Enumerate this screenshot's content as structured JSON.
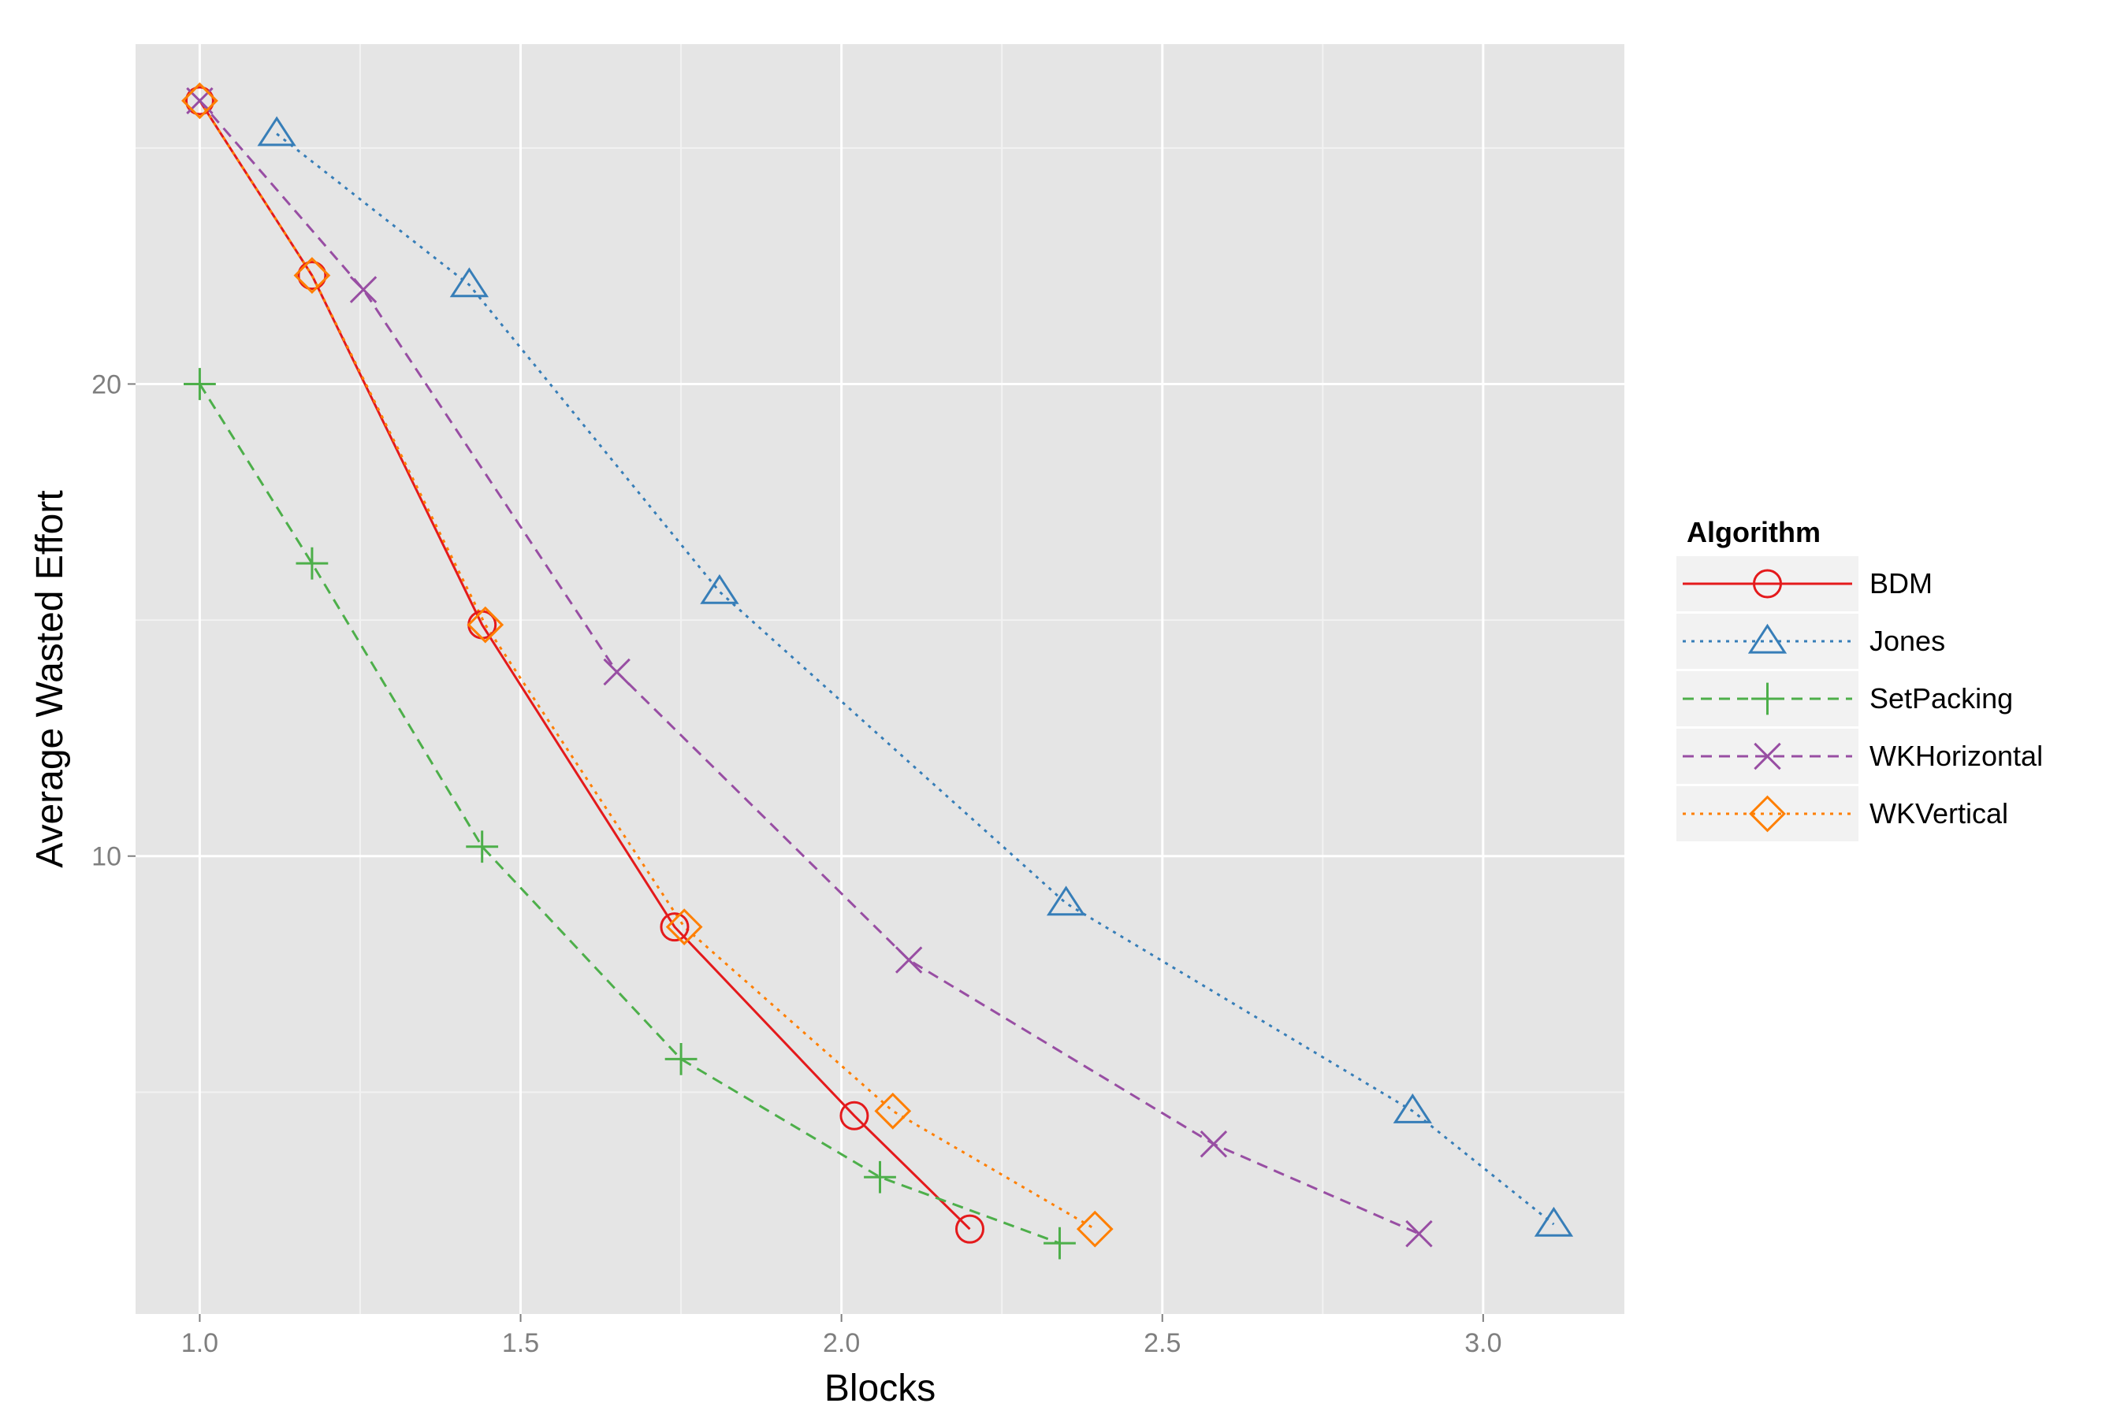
{
  "chart_data": {
    "type": "line",
    "xlabel": "Blocks",
    "ylabel": "Average Wasted Effort",
    "xlim": [
      0.9,
      3.22
    ],
    "ylim": [
      0.3,
      27.2
    ],
    "x_ticks": [
      1.0,
      1.5,
      2.0,
      2.5,
      3.0
    ],
    "x_tick_labels": [
      "1.0",
      "1.5",
      "2.0",
      "2.5",
      "3.0"
    ],
    "y_ticks": [
      10,
      20
    ],
    "y_tick_labels": [
      "10",
      "20"
    ],
    "grid": true,
    "legend": {
      "title": "Algorithm",
      "position": "right"
    },
    "series": [
      {
        "name": "BDM",
        "color": "#e41a1c",
        "linestyle": "solid",
        "marker": "circle",
        "x": [
          1.0,
          1.175,
          1.44,
          1.74,
          2.02,
          2.2
        ],
        "y": [
          26.0,
          22.3,
          14.9,
          8.5,
          4.5,
          2.1
        ]
      },
      {
        "name": "Jones",
        "color": "#377eb8",
        "linestyle": "dotted",
        "marker": "triangle",
        "x": [
          1.12,
          1.42,
          1.81,
          2.35,
          2.89,
          3.11
        ],
        "y": [
          25.3,
          22.1,
          15.6,
          9.0,
          4.6,
          2.2
        ]
      },
      {
        "name": "SetPacking",
        "color": "#4daf4a",
        "linestyle": "dashed",
        "marker": "plus",
        "x": [
          1.0,
          1.175,
          1.44,
          1.75,
          2.06,
          2.34
        ],
        "y": [
          20.0,
          16.2,
          10.2,
          5.7,
          3.2,
          1.8
        ]
      },
      {
        "name": "WKHorizontal",
        "color": "#984ea3",
        "linestyle": "dashed",
        "marker": "x",
        "x": [
          1.0,
          1.255,
          1.65,
          2.105,
          2.58,
          2.9
        ],
        "y": [
          26.0,
          22.0,
          13.9,
          7.8,
          3.9,
          2.0
        ]
      },
      {
        "name": "WKVertical",
        "color": "#ff7f00",
        "linestyle": "dotted",
        "marker": "diamond",
        "x": [
          1.0,
          1.175,
          1.445,
          1.755,
          2.08,
          2.395
        ],
        "y": [
          26.0,
          22.3,
          14.9,
          8.5,
          4.6,
          2.1
        ]
      }
    ]
  }
}
